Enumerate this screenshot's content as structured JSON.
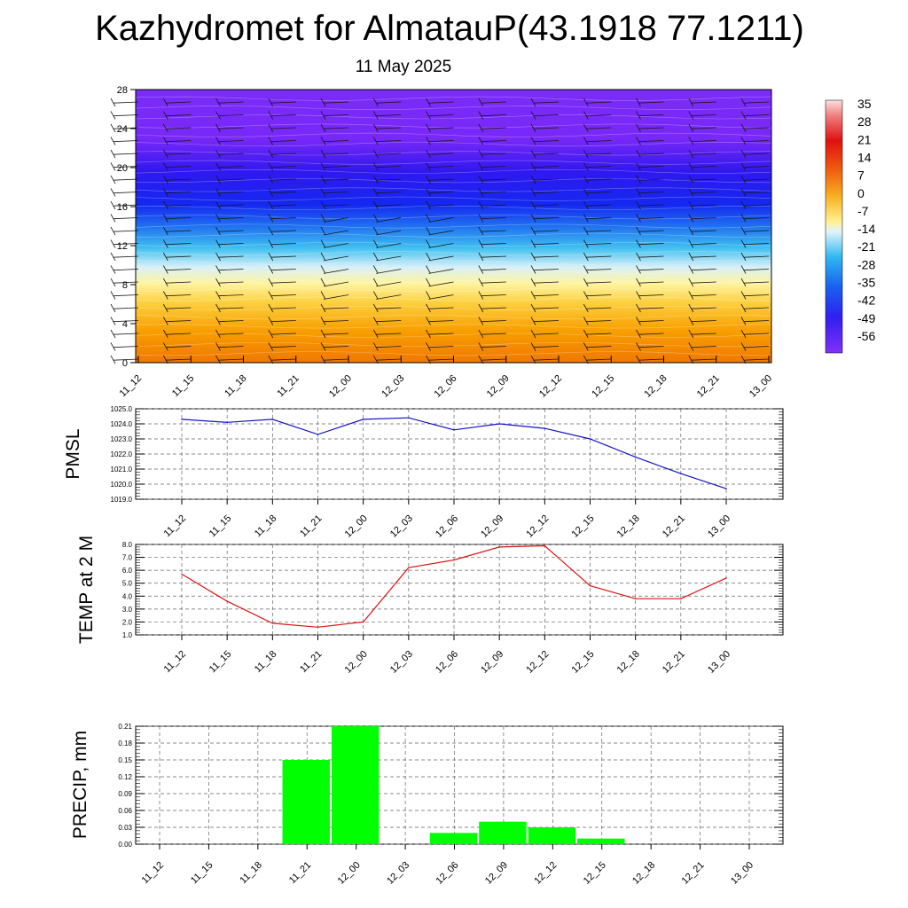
{
  "title": "Kazhydromet for AlmatauP(43.1918 77.1211)",
  "subtitle": "11 May 2025",
  "chart_data": [
    {
      "type": "heatmap",
      "name": "temperature cross-section with wind barbs",
      "x_ticks": [
        "11_12",
        "11_15",
        "11_18",
        "11_21",
        "12_00",
        "12_03",
        "12_06",
        "12_09",
        "12_12",
        "12_15",
        "12_18",
        "12_21",
        "13_00"
      ],
      "y_ticks": [
        0,
        4,
        8,
        12,
        16,
        20,
        24,
        28
      ],
      "ylim": [
        0,
        28
      ],
      "colorbar_labels": [
        "35",
        "28",
        "21",
        "14",
        "7",
        "0",
        "-7",
        "-14",
        "-21",
        "-28",
        "-35",
        "-42",
        "-49",
        "-56"
      ],
      "colors": {
        "warm": "#f07800",
        "mid": "#fff4a0",
        "pale": "#d8f0f8",
        "cyan": "#28b0f0",
        "blue": "#1428f0",
        "violet": "#7828f8"
      }
    },
    {
      "type": "line",
      "ylabel": "PMSL",
      "x": [
        "11_12",
        "11_15",
        "11_18",
        "11_21",
        "12_00",
        "12_03",
        "12_06",
        "12_09",
        "12_12",
        "12_15",
        "12_18",
        "12_21",
        "13_00"
      ],
      "y_ticks": [
        "1025.0",
        "1024.0",
        "1023.0",
        "1022.0",
        "1021.0",
        "1020.0",
        "1019.0"
      ],
      "ylim": [
        1019.0,
        1025.0
      ],
      "series": [
        {
          "values": [
            1024.3,
            1024.1,
            1024.3,
            1023.3,
            1024.3,
            1024.4,
            1023.6,
            1024.0,
            1023.7,
            1023.0,
            1021.8,
            1020.7,
            1019.7
          ]
        }
      ],
      "line_color": "#1414c8"
    },
    {
      "type": "line",
      "ylabel": "TEMP at 2 M",
      "x": [
        "11_12",
        "11_15",
        "11_18",
        "11_21",
        "12_00",
        "12_03",
        "12_06",
        "12_09",
        "12_12",
        "12_15",
        "12_18",
        "12_21",
        "13_00"
      ],
      "y_ticks": [
        "8.0",
        "7.0",
        "6.0",
        "5.0",
        "4.0",
        "3.0",
        "2.0",
        "1.0"
      ],
      "ylim": [
        1.0,
        8.0
      ],
      "series": [
        {
          "values": [
            5.7,
            3.6,
            1.9,
            1.6,
            2.0,
            6.2,
            6.8,
            7.8,
            7.9,
            4.8,
            3.8,
            3.8,
            5.4
          ]
        }
      ],
      "line_color": "#e01414"
    },
    {
      "type": "bar",
      "ylabel": "PRECIP, mm",
      "x": [
        "11_12",
        "11_15",
        "11_18",
        "11_21",
        "12_00",
        "12_03",
        "12_06",
        "12_09",
        "12_12",
        "12_15",
        "12_18",
        "12_21",
        "13_00"
      ],
      "y_ticks": [
        "0.21",
        "0.18",
        "0.15",
        "0.12",
        "0.09",
        "0.06",
        "0.03",
        "0.00"
      ],
      "ylim": [
        0,
        0.21
      ],
      "bars": [
        {
          "at": "11_21",
          "value": 0.15
        },
        {
          "at": "12_00",
          "value": 0.21
        },
        {
          "at": "12_06",
          "value": 0.02
        },
        {
          "at": "12_09",
          "value": 0.04
        },
        {
          "at": "12_12",
          "value": 0.03
        },
        {
          "at": "12_15",
          "value": 0.01
        }
      ],
      "bar_color": "#00ff00"
    }
  ]
}
